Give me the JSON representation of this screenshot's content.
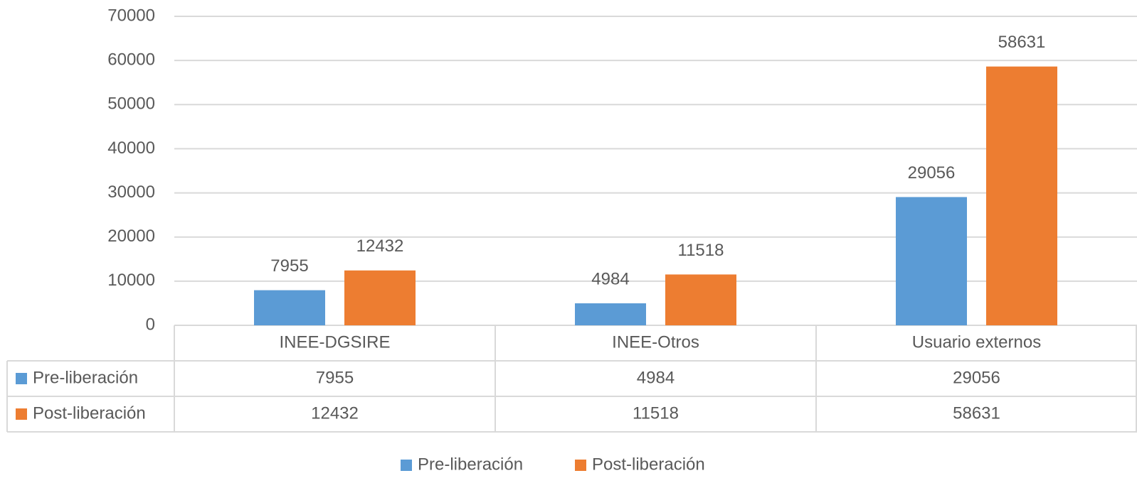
{
  "chart_data": {
    "type": "bar",
    "categories": [
      "INEE-DGSIRE",
      "INEE-Otros",
      "Usuario externos"
    ],
    "series": [
      {
        "name": "Pre-liberación",
        "color": "#5b9bd5",
        "values": [
          7955,
          4984,
          29056
        ]
      },
      {
        "name": "Post-liberación",
        "color": "#ed7d31",
        "values": [
          12432,
          11518,
          58631
        ]
      }
    ],
    "ylim": [
      0,
      70000
    ],
    "yticks": [
      0,
      10000,
      20000,
      30000,
      40000,
      50000,
      60000,
      70000
    ],
    "grid": true,
    "data_labels": true,
    "data_table": true,
    "legend": "bottom"
  }
}
